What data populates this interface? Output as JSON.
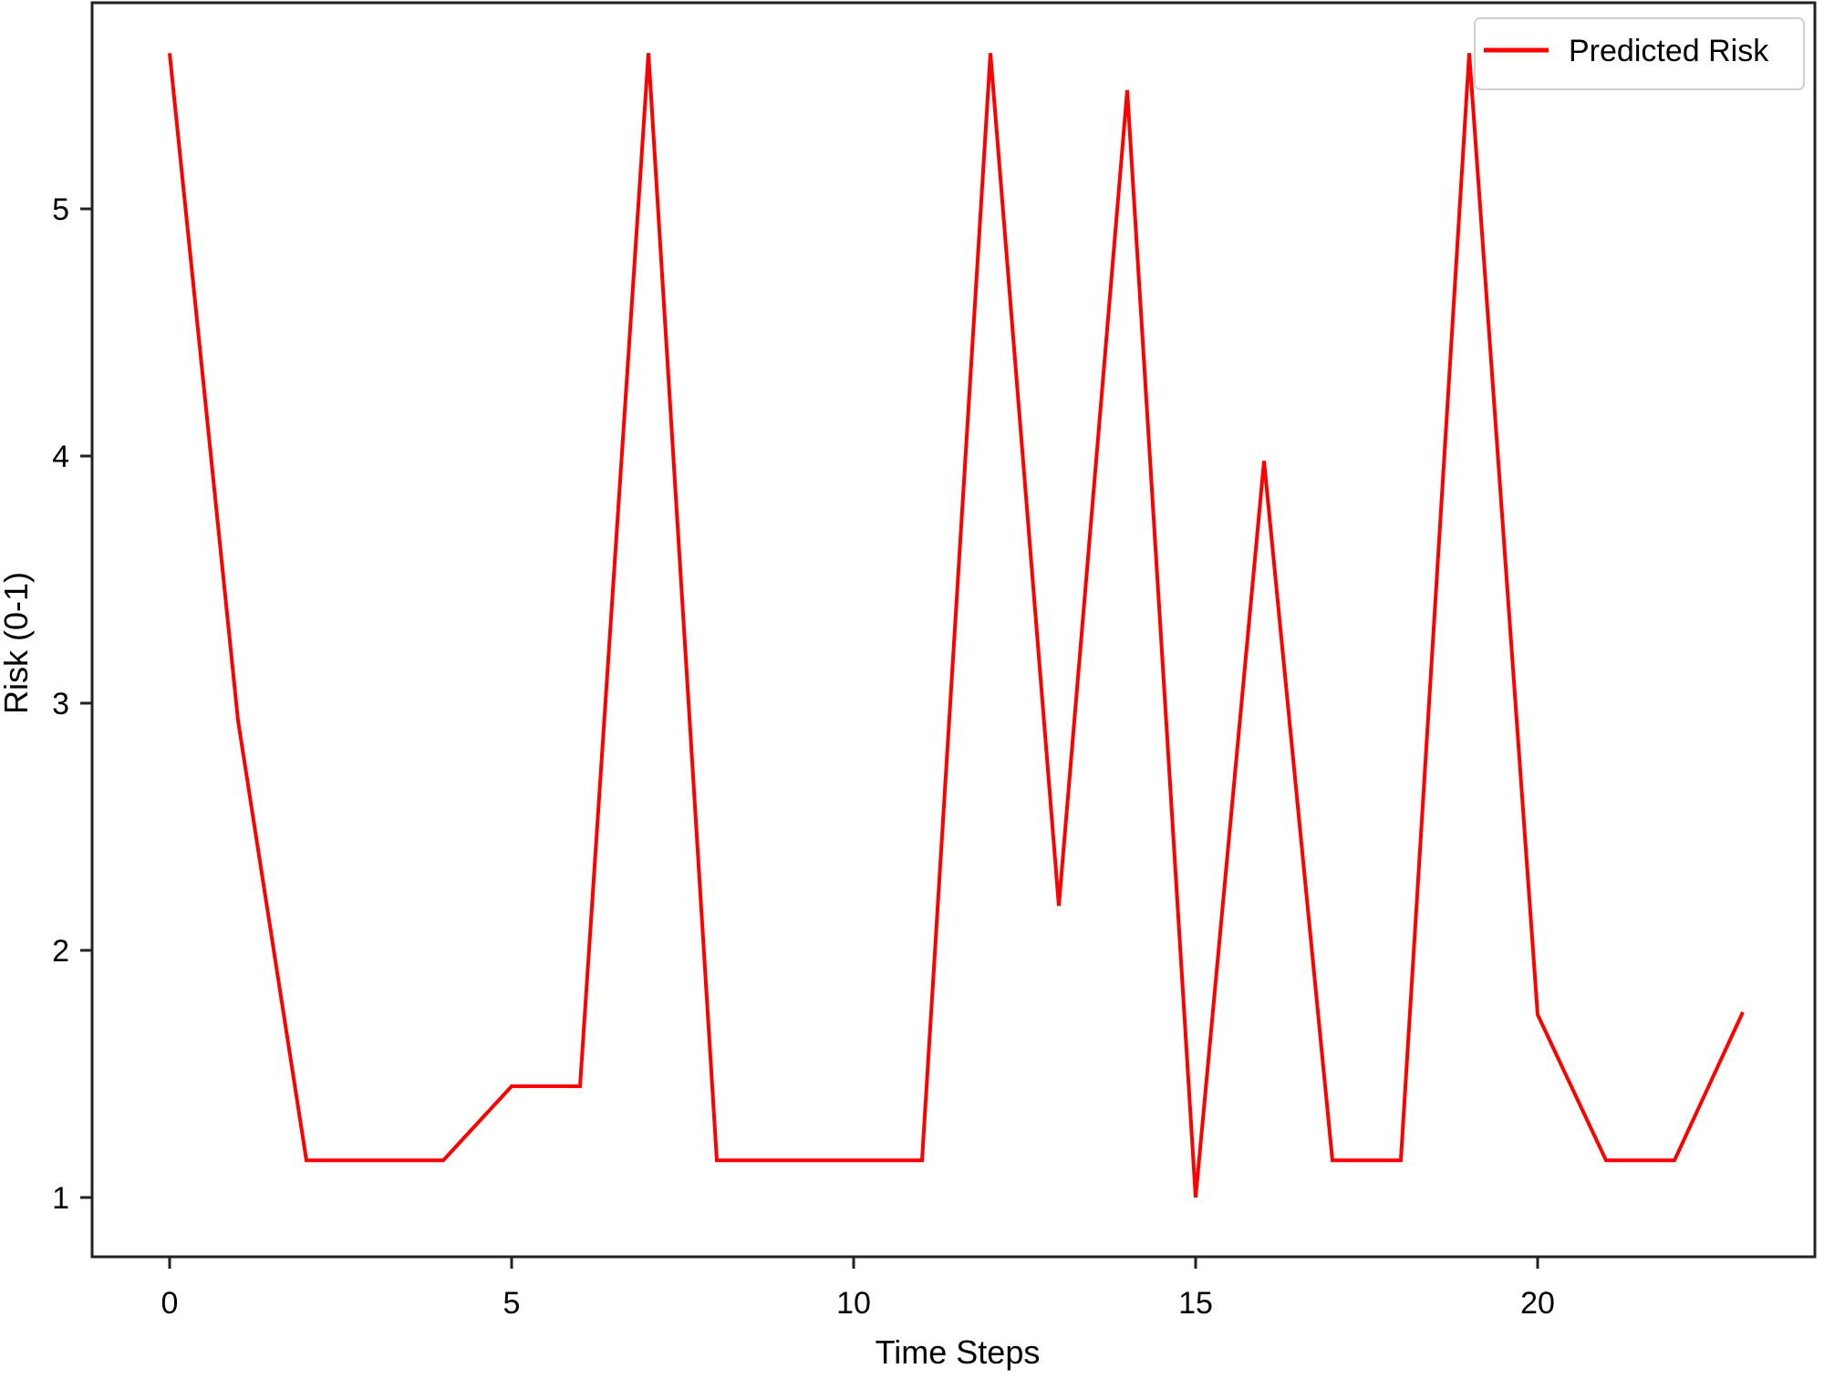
{
  "chart_data": {
    "type": "line",
    "title": "",
    "xlabel": "Time Steps",
    "ylabel": "Risk (0-1)",
    "x": [
      0,
      1,
      2,
      3,
      4,
      5,
      6,
      7,
      8,
      9,
      10,
      11,
      12,
      13,
      14,
      15,
      16,
      17,
      18,
      19,
      20,
      21,
      22,
      23
    ],
    "series": [
      {
        "name": "Predicted Risk",
        "color": "#ff0000",
        "values": [
          5.63,
          2.93,
          1.15,
          1.15,
          1.15,
          1.45,
          1.45,
          5.63,
          1.15,
          1.15,
          1.15,
          1.15,
          5.63,
          2.18,
          5.48,
          1.0,
          3.98,
          1.15,
          1.15,
          5.63,
          1.74,
          1.15,
          1.15,
          1.75
        ]
      }
    ],
    "xticks": [
      0,
      5,
      10,
      15,
      20
    ],
    "yticks": [
      1,
      2,
      3,
      4,
      5
    ],
    "xlim": [
      -1.15,
      24.15
    ],
    "ylim": [
      0.76,
      5.84
    ],
    "grid": false,
    "legend_position": "upper right"
  },
  "labels": {
    "xlabel": "Time Steps",
    "ylabel": "Risk (0-1)",
    "legend": "Predicted Risk",
    "xtick_0": "0",
    "xtick_1": "5",
    "xtick_2": "10",
    "xtick_3": "15",
    "xtick_4": "20",
    "ytick_0": "1",
    "ytick_1": "2",
    "ytick_2": "3",
    "ytick_3": "4",
    "ytick_4": "5"
  }
}
